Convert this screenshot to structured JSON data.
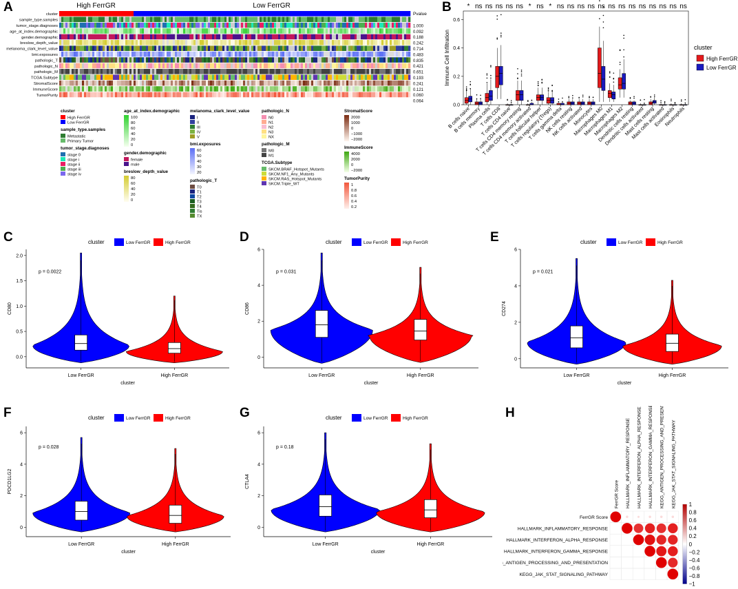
{
  "panels": {
    "A": "A",
    "B": "B",
    "C": "C",
    "D": "D",
    "E": "E",
    "F": "F",
    "G": "G",
    "H": "H"
  },
  "colors": {
    "high": "#ff0000",
    "low": "#0000ff",
    "highB": "#e41a1c",
    "lowB": "#1a1ac0"
  },
  "chart_data": [
    {
      "panel": "A",
      "type": "heatmap",
      "groups": [
        "High FerrGR",
        "Low FerrGR"
      ],
      "pvalue_header": "Pvalue",
      "rows": [
        {
          "label": "cluster",
          "p": ""
        },
        {
          "label": "sample_type.samples",
          "p": "1.000"
        },
        {
          "label": "tumor_stage.diagnoses",
          "p": "0.092"
        },
        {
          "label": "age_at_index.demographic",
          "p": "0.188"
        },
        {
          "label": "gender.demographic",
          "p": "0.242"
        },
        {
          "label": "breslow_depth_value",
          "p": "0.714"
        },
        {
          "label": "melanoma_clark_level_value",
          "p": "0.483"
        },
        {
          "label": "bmi.exposures",
          "p": "0.835"
        },
        {
          "label": "pathologic_T",
          "p": "0.421"
        },
        {
          "label": "pathologic_N",
          "p": "0.651"
        },
        {
          "label": "pathologic_M",
          "p": "0.193"
        },
        {
          "label": "TCGA.Subtype",
          "p": "0.241"
        },
        {
          "label": "StromalScore",
          "p": "0.121"
        },
        {
          "label": "ImmuneScore",
          "p": "0.060"
        },
        {
          "label": "TumorPurity",
          "p": "0.064"
        }
      ],
      "legends": [
        {
          "title": "cluster",
          "kind": "cat",
          "items": [
            {
              "l": "High FerrGR",
              "c": "#ff0000"
            },
            {
              "l": "Low FerrGR",
              "c": "#0000ff"
            }
          ]
        },
        {
          "title": "sample_type.samples",
          "kind": "cat",
          "items": [
            {
              "l": "Metastatic",
              "c": "#2e7d32"
            },
            {
              "l": "Primary Tumor",
              "c": "#66bb6a"
            }
          ]
        },
        {
          "title": "tumor_stage.diagnoses",
          "kind": "cat",
          "items": [
            {
              "l": "stage 0",
              "c": "#1e6fb0"
            },
            {
              "l": "stage i",
              "c": "#1de9b6"
            },
            {
              "l": "stage ii",
              "c": "#e91e63"
            },
            {
              "l": "stage iii",
              "c": "#4caf50"
            },
            {
              "l": "stage iv",
              "c": "#7b68ee"
            }
          ]
        },
        {
          "title": "age_at_index.demographic",
          "kind": "grad",
          "ticks": [
            "100",
            "80",
            "60",
            "40",
            "20",
            "0"
          ],
          "c0": "#f5ffef",
          "c1": "#2fd12f"
        },
        {
          "title": "gender.demographic",
          "kind": "cat",
          "items": [
            {
              "l": "female",
              "c": "#c2185b"
            },
            {
              "l": "male",
              "c": "#4a148c"
            }
          ]
        },
        {
          "title": "breslow_depth_value",
          "kind": "grad",
          "ticks": [
            "80",
            "60",
            "40",
            "20",
            "0"
          ],
          "c0": "#fffdf0",
          "c1": "#d4cc30"
        },
        {
          "title": "melanoma_clark_level_value",
          "kind": "cat",
          "items": [
            {
              "l": "I",
              "c": "#1a237e"
            },
            {
              "l": "II",
              "c": "#303f9f"
            },
            {
              "l": "III",
              "c": "#2e7d32"
            },
            {
              "l": "IV",
              "c": "#7cb342"
            },
            {
              "l": "V",
              "c": "#9e9d24"
            }
          ]
        },
        {
          "title": "bmi.exposures",
          "kind": "grad",
          "ticks": [
            "60",
            "50",
            "40",
            "30",
            "20"
          ],
          "c0": "#f3f5ff",
          "c1": "#5b6ef5"
        },
        {
          "title": "pathologic_T",
          "kind": "cat",
          "items": [
            {
              "l": "T0",
              "c": "#6d4c41"
            },
            {
              "l": "T1",
              "c": "#1a237e"
            },
            {
              "l": "T2",
              "c": "#0d47a1"
            },
            {
              "l": "T3",
              "c": "#1b5e20"
            },
            {
              "l": "T4",
              "c": "#33691e"
            },
            {
              "l": "Tis",
              "c": "#2e7d32"
            },
            {
              "l": "TX",
              "c": "#558b2f"
            }
          ]
        },
        {
          "title": "pathologic_N",
          "kind": "cat",
          "items": [
            {
              "l": "N0",
              "c": "#f48fb1"
            },
            {
              "l": "N1",
              "c": "#ffab91"
            },
            {
              "l": "N2",
              "c": "#f8bbd0"
            },
            {
              "l": "N3",
              "c": "#ffe082"
            },
            {
              "l": "NX",
              "c": "#fff59d"
            }
          ]
        },
        {
          "title": "pathologic_M",
          "kind": "cat",
          "items": [
            {
              "l": "M0",
              "c": "#757575"
            },
            {
              "l": "M1",
              "c": "#424242"
            }
          ]
        },
        {
          "title": "TCGA.Subtype",
          "kind": "cat",
          "items": [
            {
              "l": "SKCM.BRAF_Hotspot_Mutants",
              "c": "#66bb6a"
            },
            {
              "l": "SKCM.NF1_Any_Mutants",
              "c": "#cddc39"
            },
            {
              "l": "SKCM.RAS_Hotspot_Mutants",
              "c": "#ffb300"
            },
            {
              "l": "SKCM.Triple_WT",
              "c": "#5e35b1"
            }
          ]
        },
        {
          "title": "StromalScore",
          "kind": "grad",
          "ticks": [
            "2000",
            "1000",
            "0",
            "−1000",
            "−2000"
          ],
          "c0": "#fff5ee",
          "c1": "#7b2c12"
        },
        {
          "title": "ImmuneScore",
          "kind": "grad",
          "ticks": [
            "4000",
            "2000",
            "0",
            "−2000"
          ],
          "c0": "#f4ffe8",
          "c1": "#3fa812"
        },
        {
          "title": "TumorPurity",
          "kind": "grad",
          "ticks": [
            "1",
            "0.8",
            "0.6",
            "0.4",
            "0.2"
          ],
          "c0": "#fff0ec",
          "c1": "#f2573c"
        }
      ]
    },
    {
      "panel": "B",
      "type": "box",
      "ylabel": "Immune Cell Infiltration",
      "yticks": [
        "0.0",
        "0.2",
        "0.4",
        "0.6"
      ],
      "ylim": [
        0,
        0.66
      ],
      "legend_title": "cluster",
      "series": [
        "High FerrGR",
        "Low FerrGR"
      ],
      "categories": [
        "B cells naive",
        "B cells memory",
        "Plasma cells",
        "T cells CD8",
        "T cells CD4 naive",
        "T cells CD4 memory resting",
        "T cells CD4 memory activated",
        "T cells follicular helper",
        "T cells regulatory (Tregs)",
        "T cells gamma delta",
        "NK cells resting",
        "NK cells activated",
        "Monocytes",
        "Macrophages M0",
        "Macrophages M1",
        "Macrophages M2",
        "Dendritic cells resting",
        "Dendritic cells activated",
        "Mast cells resting",
        "Mast cells activated",
        "Eosinophils",
        "Neutrophils"
      ],
      "signif": [
        "*",
        "ns",
        "ns",
        "ns",
        "ns",
        "ns",
        "*",
        "ns",
        "*",
        "ns",
        "ns",
        "ns",
        "ns",
        "ns",
        "ns",
        "ns",
        "ns",
        "ns",
        "ns",
        "ns",
        "ns",
        "ns"
      ],
      "high": [
        [
          0.0,
          0.01,
          0.03,
          0.05,
          0.1
        ],
        [
          0.0,
          0.0,
          0.01,
          0.02,
          0.04
        ],
        [
          0.0,
          0.02,
          0.05,
          0.08,
          0.15
        ],
        [
          0.04,
          0.12,
          0.2,
          0.27,
          0.4
        ],
        [
          0.0,
          0.0,
          0.0,
          0.0,
          0.01
        ],
        [
          0.0,
          0.03,
          0.07,
          0.1,
          0.17
        ],
        [
          0.0,
          0.0,
          0.0,
          0.0,
          0.01
        ],
        [
          0.0,
          0.03,
          0.05,
          0.07,
          0.12
        ],
        [
          0.0,
          0.01,
          0.03,
          0.05,
          0.09
        ],
        [
          0.0,
          0.0,
          0.0,
          0.01,
          0.02
        ],
        [
          0.0,
          0.0,
          0.01,
          0.02,
          0.04
        ],
        [
          0.0,
          0.0,
          0.01,
          0.02,
          0.04
        ],
        [
          0.0,
          0.0,
          0.01,
          0.02,
          0.04
        ],
        [
          0.02,
          0.12,
          0.22,
          0.4,
          0.55
        ],
        [
          0.02,
          0.05,
          0.08,
          0.1,
          0.15
        ],
        [
          0.05,
          0.11,
          0.14,
          0.19,
          0.25
        ],
        [
          0.0,
          0.0,
          0.01,
          0.02,
          0.03
        ],
        [
          0.0,
          0.0,
          0.0,
          0.0,
          0.01
        ],
        [
          0.0,
          0.0,
          0.01,
          0.02,
          0.04
        ],
        [
          0.0,
          0.0,
          0.0,
          0.0,
          0.01
        ],
        [
          0.0,
          0.0,
          0.0,
          0.0,
          0.01
        ],
        [
          0.0,
          0.0,
          0.0,
          0.0,
          0.01
        ]
      ],
      "low": [
        [
          0.0,
          0.02,
          0.04,
          0.06,
          0.11
        ],
        [
          0.0,
          0.0,
          0.01,
          0.02,
          0.04
        ],
        [
          0.0,
          0.03,
          0.06,
          0.1,
          0.18
        ],
        [
          0.04,
          0.14,
          0.22,
          0.27,
          0.42
        ],
        [
          0.0,
          0.0,
          0.0,
          0.0,
          0.01
        ],
        [
          0.0,
          0.03,
          0.07,
          0.1,
          0.17
        ],
        [
          0.0,
          0.0,
          0.0,
          0.01,
          0.02
        ],
        [
          0.0,
          0.03,
          0.05,
          0.07,
          0.12
        ],
        [
          0.0,
          0.01,
          0.03,
          0.05,
          0.09
        ],
        [
          0.0,
          0.0,
          0.0,
          0.01,
          0.02
        ],
        [
          0.0,
          0.0,
          0.01,
          0.02,
          0.04
        ],
        [
          0.0,
          0.0,
          0.01,
          0.02,
          0.04
        ],
        [
          0.0,
          0.0,
          0.01,
          0.02,
          0.04
        ],
        [
          0.02,
          0.1,
          0.18,
          0.27,
          0.45
        ],
        [
          0.02,
          0.04,
          0.07,
          0.09,
          0.14
        ],
        [
          0.05,
          0.11,
          0.15,
          0.22,
          0.32
        ],
        [
          0.0,
          0.0,
          0.01,
          0.02,
          0.03
        ],
        [
          0.0,
          0.0,
          0.0,
          0.0,
          0.01
        ],
        [
          0.0,
          0.01,
          0.02,
          0.03,
          0.05
        ],
        [
          0.0,
          0.0,
          0.0,
          0.0,
          0.01
        ],
        [
          0.0,
          0.0,
          0.0,
          0.0,
          0.01
        ],
        [
          0.0,
          0.0,
          0.0,
          0.0,
          0.01
        ]
      ]
    },
    {
      "panel": "C",
      "type": "violin",
      "legend_title": "cluster",
      "legend": [
        "Low FerrGR",
        "High FerrGR"
      ],
      "pvalue": "p = 0.0022",
      "ylabel": "CD80",
      "xlabel": "cluster",
      "categories": [
        "Low FerrGR",
        "High FerrGR"
      ],
      "yticks": [
        "0.0",
        "0.5",
        "1.0",
        "1.5",
        "2.0"
      ],
      "ylim": [
        -0.22,
        2.12
      ],
      "groups": [
        {
          "min": -0.12,
          "q1": 0.13,
          "med": 0.26,
          "q3": 0.43,
          "max": 2.05,
          "mode": 0.22,
          "width": 0.95
        },
        {
          "min": -0.12,
          "q1": 0.07,
          "med": 0.16,
          "q3": 0.28,
          "max": 1.2,
          "mode": 0.1,
          "width": 0.95
        }
      ]
    },
    {
      "panel": "D",
      "type": "violin",
      "legend_title": "cluster",
      "legend": [
        "Low FerrGR",
        "High FerrGR"
      ],
      "pvalue": "p = 0.031",
      "ylabel": "CD86",
      "xlabel": "cluster",
      "categories": [
        "Low FerrGR",
        "High FerrGR"
      ],
      "yticks": [
        "0",
        "2",
        "4",
        "6"
      ],
      "ylim": [
        -0.6,
        6.0
      ],
      "groups": [
        {
          "min": -0.35,
          "q1": 1.1,
          "med": 1.8,
          "q3": 2.6,
          "max": 5.8,
          "mode": 1.5,
          "width": 0.95
        },
        {
          "min": -0.3,
          "q1": 0.95,
          "med": 1.45,
          "q3": 2.1,
          "max": 5.0,
          "mode": 1.2,
          "width": 0.95
        }
      ]
    },
    {
      "panel": "E",
      "type": "violin",
      "legend_title": "cluster",
      "legend": [
        "Low FerrGR",
        "High FerrGR"
      ],
      "pvalue": "p = 0.021",
      "ylabel": "CD274",
      "xlabel": "cluster",
      "categories": [
        "Low FerrGR",
        "High FerrGR"
      ],
      "yticks": [
        "0",
        "2",
        "4",
        "6"
      ],
      "ylim": [
        -0.5,
        6.0
      ],
      "groups": [
        {
          "min": -0.3,
          "q1": 0.6,
          "med": 1.15,
          "q3": 1.8,
          "max": 5.5,
          "mode": 0.9,
          "width": 0.95
        },
        {
          "min": -0.3,
          "q1": 0.4,
          "med": 0.85,
          "q3": 1.35,
          "max": 4.3,
          "mode": 0.7,
          "width": 0.95
        }
      ]
    },
    {
      "panel": "F",
      "type": "violin",
      "legend_title": "cluster",
      "legend": [
        "Low FerrGR",
        "High FerrGR"
      ],
      "pvalue": "p = 0.028",
      "ylabel": "PDCD1LG2",
      "xlabel": "cluster",
      "categories": [
        "Low FerrGR",
        "High FerrGR"
      ],
      "yticks": [
        "0",
        "2",
        "4",
        "6"
      ],
      "ylim": [
        -0.6,
        6.4
      ],
      "groups": [
        {
          "min": -0.3,
          "q1": 0.45,
          "med": 1.0,
          "q3": 1.65,
          "max": 5.7,
          "mode": 0.9,
          "width": 0.95
        },
        {
          "min": -0.3,
          "q1": 0.25,
          "med": 0.75,
          "q3": 1.4,
          "max": 5.0,
          "mode": 0.7,
          "width": 0.95
        }
      ]
    },
    {
      "panel": "G",
      "type": "violin",
      "legend_title": "cluster",
      "legend": [
        "Low FerrGR",
        "High FerrGR"
      ],
      "pvalue": "p = 0.18",
      "ylabel": "CTLA4",
      "xlabel": "cluster",
      "categories": [
        "Low FerrGR",
        "High FerrGR"
      ],
      "yticks": [
        "0",
        "2",
        "4",
        "6"
      ],
      "ylim": [
        -0.6,
        6.4
      ],
      "groups": [
        {
          "min": -0.3,
          "q1": 0.7,
          "med": 1.3,
          "q3": 2.05,
          "max": 6.0,
          "mode": 1.1,
          "width": 0.95
        },
        {
          "min": -0.3,
          "q1": 0.6,
          "med": 1.1,
          "q3": 1.75,
          "max": 5.3,
          "mode": 0.95,
          "width": 0.95
        }
      ]
    },
    {
      "panel": "H",
      "type": "corrplot",
      "labels": [
        "FerrGR Score",
        "HALLMARK_INFLAMMATORY_RESPONSE",
        "HALLMARK_INTERFERON_ALPHA_RESPONSE",
        "HALLMARK_INTERFERON_GAMMA_RESPONSE",
        "KEGG_ANTIGEN_PROCESSING_AND_PRESENTATION",
        "KEGG_JAK_STAT_SIGNALING_PATHWAY"
      ],
      "matrix": [
        [
          1,
          0.05,
          0.04,
          0.05,
          0.05,
          0.05
        ],
        [
          0.05,
          1,
          0.78,
          0.86,
          0.8,
          0.86
        ],
        [
          0.04,
          0.78,
          1,
          0.93,
          0.84,
          0.84
        ],
        [
          0.05,
          0.86,
          0.93,
          1,
          0.9,
          0.87
        ],
        [
          0.05,
          0.8,
          0.84,
          0.9,
          1,
          0.82
        ],
        [
          0.05,
          0.86,
          0.84,
          0.87,
          0.82,
          1
        ]
      ],
      "scale_ticks": [
        "1",
        "0.8",
        "0.6",
        "0.4",
        "0.2",
        "0",
        "−0.2",
        "−0.4",
        "−0.6",
        "−0.8",
        "−1"
      ]
    }
  ]
}
